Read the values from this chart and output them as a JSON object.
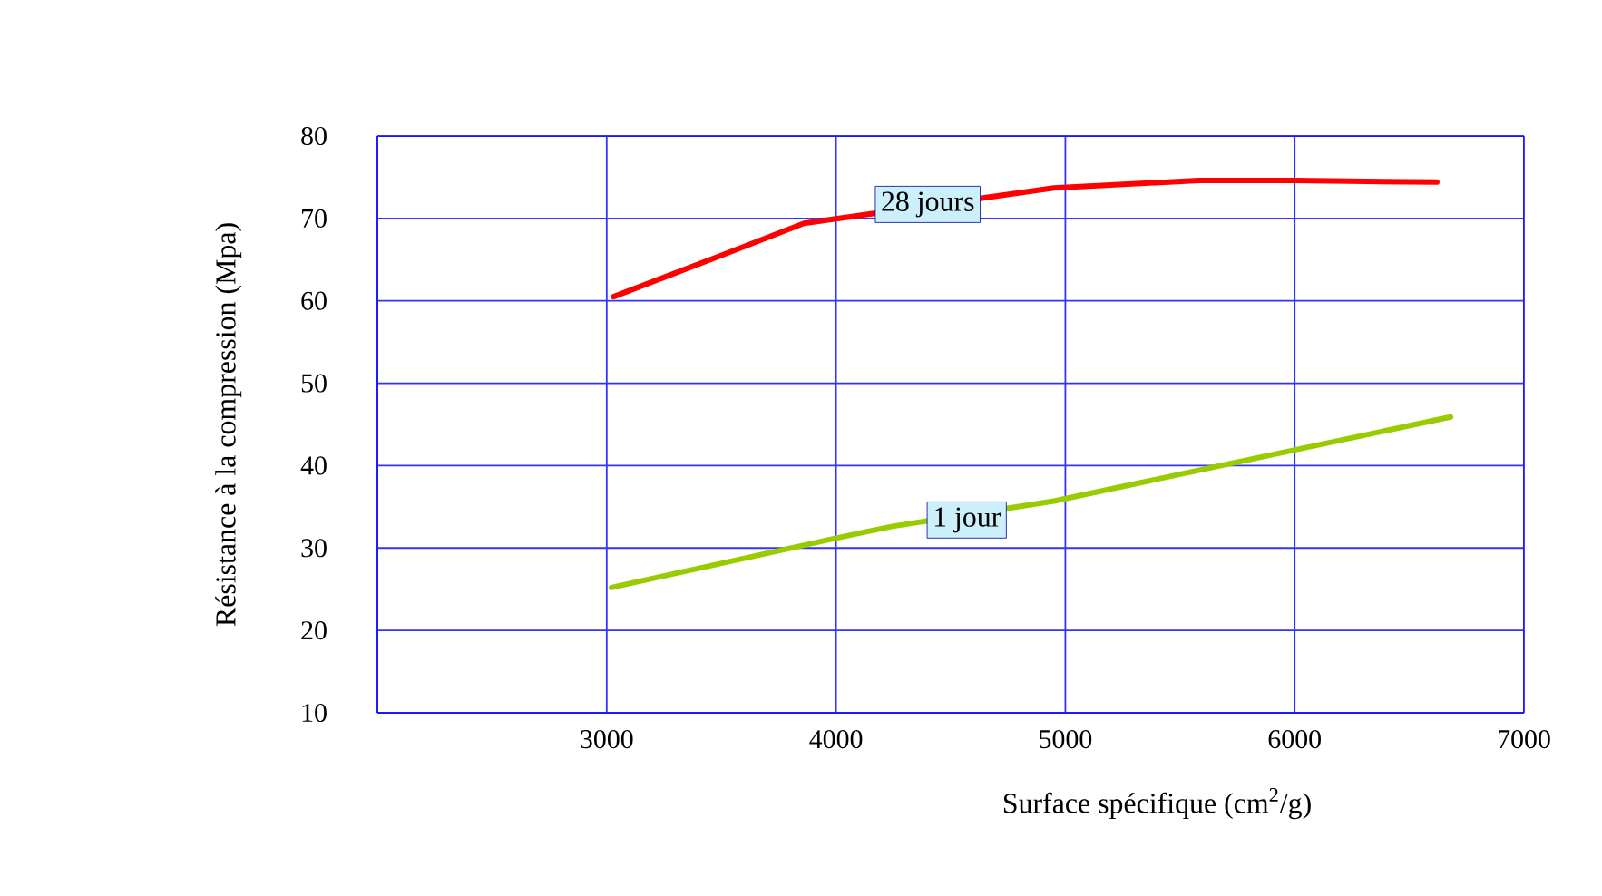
{
  "chart_data": {
    "type": "line",
    "xlabel": "Surface spécifique (cm$^{2}$/g)",
    "ylabel": "Résistance à la compression (Mpa)",
    "xlim": [
      2000,
      7000
    ],
    "ylim": [
      10,
      80
    ],
    "xticks": [
      3000,
      4000,
      5000,
      6000,
      7000
    ],
    "yticks": [
      10,
      20,
      30,
      40,
      50,
      60,
      70,
      80
    ],
    "grid": true,
    "legend": false,
    "line_style": "solid",
    "marker": "none",
    "series": [
      {
        "color": "#ff0000",
        "x": [
          3030,
          3470,
          3860,
          4950,
          5580,
          6000,
          6620
        ],
        "values": [
          60.5,
          65.2,
          69.4,
          73.7,
          74.6,
          74.6,
          74.4
        ]
      },
      {
        "color": "#99cc00",
        "x": [
          3020,
          4000,
          4240,
          4950,
          6000,
          6680
        ],
        "values": [
          25.2,
          31.2,
          32.6,
          35.7,
          41.9,
          45.9
        ]
      }
    ],
    "annotations": [
      {
        "text": "28  jours",
        "x": 4400,
        "y": 71.7
      },
      {
        "text": "1 jour",
        "x": 4570,
        "y": 33.4
      }
    ]
  }
}
